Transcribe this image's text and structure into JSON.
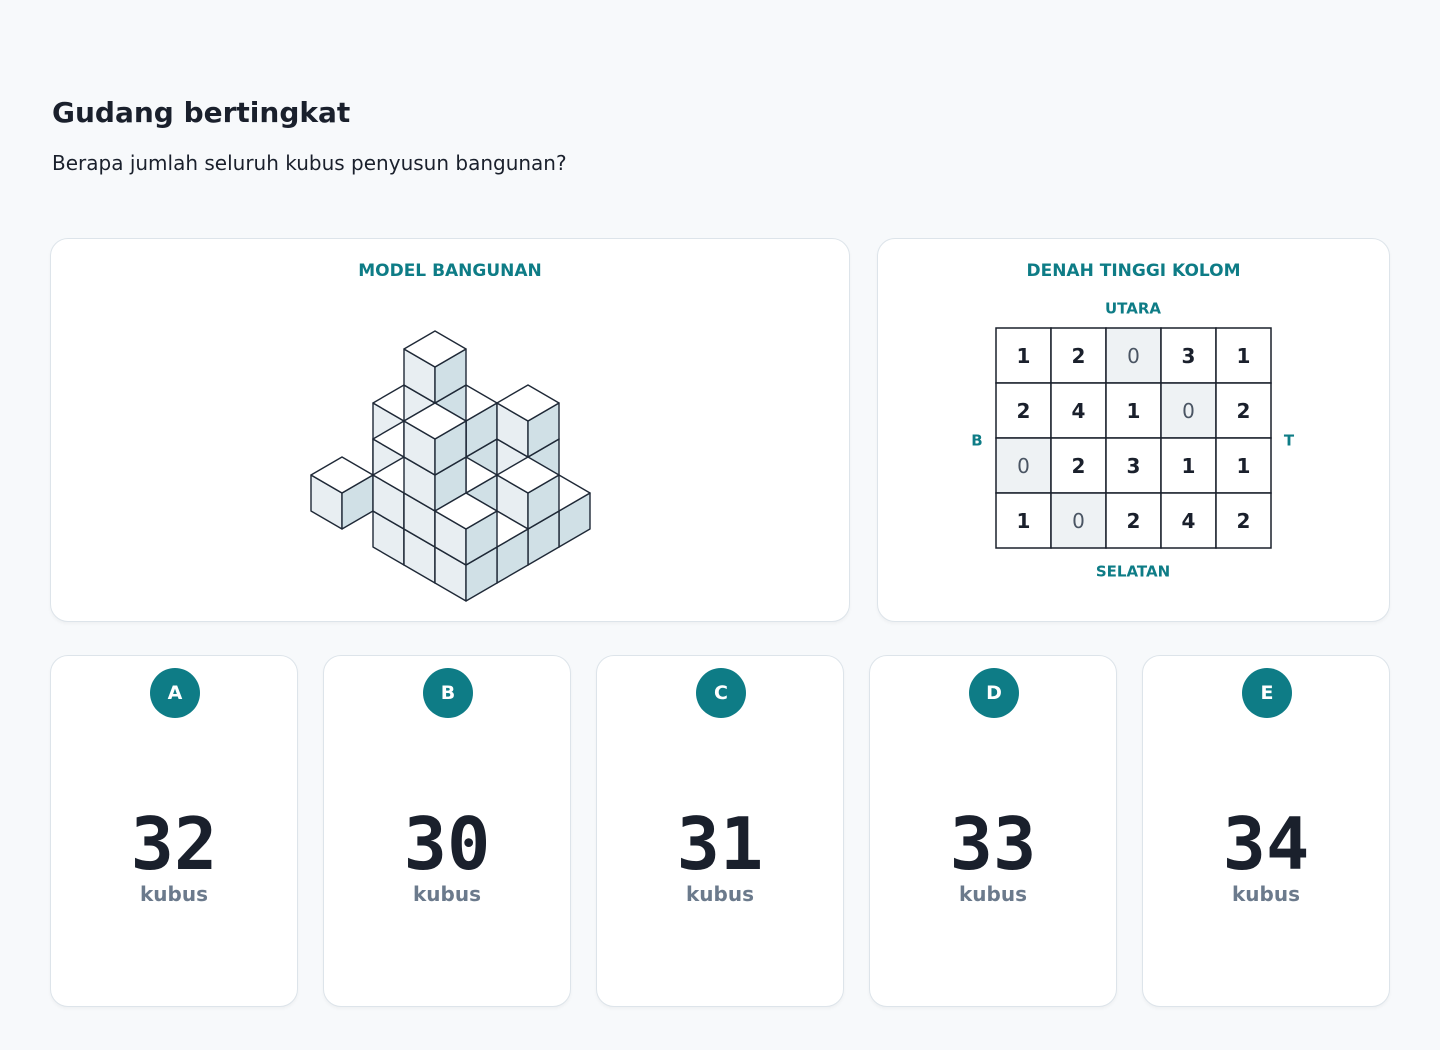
{
  "header": {
    "title": "Gudang bertingkat",
    "question": "Berapa jumlah seluruh kubus penyusun bangunan?"
  },
  "model_panel": {
    "title": "MODEL BANGUNAN"
  },
  "plan_panel": {
    "title": "DENAH TINGGI KOLOM",
    "north": "UTARA",
    "south": "SELATAN",
    "west": "B",
    "east": "T"
  },
  "grid": {
    "rows": [
      [
        1,
        2,
        0,
        3,
        1
      ],
      [
        2,
        4,
        1,
        0,
        2
      ],
      [
        0,
        2,
        3,
        1,
        1
      ],
      [
        1,
        0,
        2,
        4,
        2
      ]
    ]
  },
  "options": [
    {
      "letter": "A",
      "value": 32
    },
    {
      "letter": "B",
      "value": 30
    },
    {
      "letter": "C",
      "value": 31
    },
    {
      "letter": "D",
      "value": 33
    },
    {
      "letter": "E",
      "value": 34
    }
  ],
  "unit": "kubus"
}
